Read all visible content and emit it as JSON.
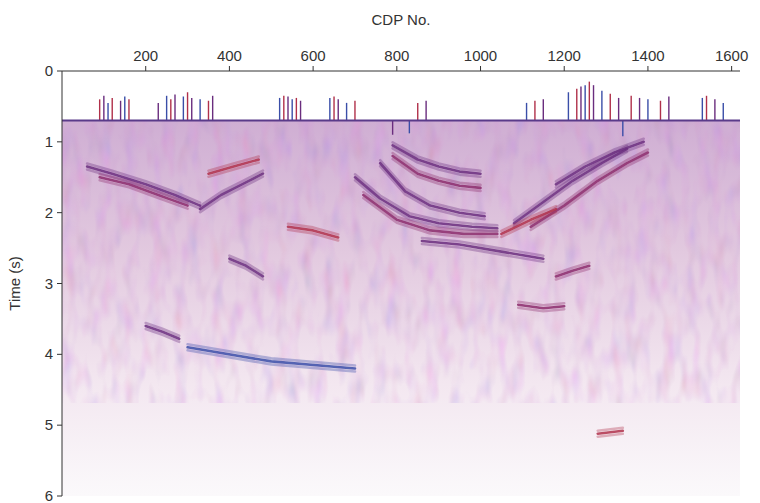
{
  "chart_data": {
    "type": "seismic_section",
    "x_label": "CDP No.",
    "y_label": "Time (s)",
    "xlim": [
      0,
      1620
    ],
    "ylim": [
      0,
      6
    ],
    "xticks": [
      200,
      400,
      600,
      800,
      1000,
      1200,
      1400,
      1600
    ],
    "yticks": [
      0,
      1,
      2,
      3,
      4,
      5,
      6
    ],
    "record_start": 0.7,
    "statics": {
      "x": [
        90,
        100,
        110,
        120,
        140,
        150,
        160,
        230,
        250,
        260,
        270,
        290,
        300,
        310,
        330,
        350,
        360,
        520,
        530,
        540,
        550,
        560,
        570,
        640,
        650,
        660,
        680,
        700,
        790,
        830,
        850,
        870,
        1110,
        1130,
        1150,
        1210,
        1230,
        1240,
        1250,
        1260,
        1270,
        1290,
        1310,
        1330,
        1340,
        1360,
        1380,
        1400,
        1430,
        1450,
        1530,
        1540,
        1560,
        1580
      ],
      "values": [
        0.4,
        0.35,
        0.45,
        0.38,
        0.42,
        0.36,
        0.4,
        0.45,
        0.35,
        0.4,
        0.33,
        0.36,
        0.3,
        0.38,
        0.4,
        0.42,
        0.35,
        0.38,
        0.35,
        0.36,
        0.4,
        0.38,
        0.42,
        0.38,
        0.36,
        0.4,
        0.45,
        0.42,
        0.9,
        0.88,
        0.45,
        0.42,
        0.45,
        0.42,
        0.4,
        0.3,
        0.25,
        0.22,
        0.2,
        0.15,
        0.2,
        0.28,
        0.32,
        0.38,
        0.92,
        0.35,
        0.38,
        0.4,
        0.42,
        0.36,
        0.38,
        0.35,
        0.4,
        0.45
      ]
    },
    "reflectors": [
      {
        "x": [
          60,
          120,
          200,
          270,
          330
        ],
        "values": [
          1.35,
          1.45,
          1.6,
          1.75,
          1.9
        ],
        "color": "#6a2d7e"
      },
      {
        "x": [
          90,
          160,
          230,
          300
        ],
        "values": [
          1.5,
          1.6,
          1.75,
          1.9
        ],
        "color": "#8b2a6b"
      },
      {
        "x": [
          330,
          380,
          430,
          480
        ],
        "values": [
          1.95,
          1.75,
          1.6,
          1.45
        ],
        "color": "#6a2d7e"
      },
      {
        "x": [
          350,
          410,
          470
        ],
        "values": [
          1.45,
          1.35,
          1.25
        ],
        "color": "#b0304a"
      },
      {
        "x": [
          790,
          850,
          900,
          950,
          1000
        ],
        "values": [
          1.05,
          1.25,
          1.35,
          1.42,
          1.45
        ],
        "color": "#6a2d7e"
      },
      {
        "x": [
          790,
          850,
          900,
          950,
          1000
        ],
        "values": [
          1.2,
          1.45,
          1.55,
          1.62,
          1.65
        ],
        "color": "#8b2a6b"
      },
      {
        "x": [
          760,
          820,
          880,
          950,
          1010
        ],
        "values": [
          1.3,
          1.7,
          1.9,
          2.0,
          2.05
        ],
        "color": "#6a2d7e"
      },
      {
        "x": [
          700,
          760,
          830,
          900,
          980,
          1040
        ],
        "values": [
          1.5,
          1.8,
          2.05,
          2.15,
          2.2,
          2.22
        ],
        "color": "#6a2d7e"
      },
      {
        "x": [
          720,
          800,
          880,
          960,
          1040
        ],
        "values": [
          1.75,
          2.1,
          2.25,
          2.3,
          2.3
        ],
        "color": "#8b2a6b"
      },
      {
        "x": [
          860,
          950,
          1050,
          1150
        ],
        "values": [
          2.4,
          2.45,
          2.55,
          2.65
        ],
        "color": "#6a2d7e"
      },
      {
        "x": [
          1080,
          1150,
          1220,
          1290,
          1350
        ],
        "values": [
          2.15,
          1.85,
          1.55,
          1.3,
          1.1
        ],
        "color": "#6a2d7e"
      },
      {
        "x": [
          1120,
          1200,
          1280,
          1350,
          1400
        ],
        "values": [
          2.2,
          1.9,
          1.55,
          1.3,
          1.15
        ],
        "color": "#8b2a6b"
      },
      {
        "x": [
          1180,
          1250,
          1320,
          1390
        ],
        "values": [
          1.6,
          1.35,
          1.15,
          1.0
        ],
        "color": "#6a2d7e"
      },
      {
        "x": [
          1050,
          1120,
          1180
        ],
        "values": [
          2.3,
          2.1,
          1.95
        ],
        "color": "#b0304a"
      },
      {
        "x": [
          400,
          440,
          480
        ],
        "values": [
          2.65,
          2.75,
          2.9
        ],
        "color": "#6a2d7e"
      },
      {
        "x": [
          200,
          240,
          280
        ],
        "values": [
          3.6,
          3.68,
          3.78
        ],
        "color": "#6a2d7e"
      },
      {
        "x": [
          1180,
          1220,
          1260
        ],
        "values": [
          2.9,
          2.82,
          2.75
        ],
        "color": "#8b2a6b"
      },
      {
        "x": [
          1280,
          1310,
          1340
        ],
        "values": [
          5.12,
          5.1,
          5.08
        ],
        "color": "#b0304a"
      },
      {
        "x": [
          1090,
          1150,
          1200
        ],
        "values": [
          3.3,
          3.35,
          3.32
        ],
        "color": "#8b2a6b"
      },
      {
        "x": [
          540,
          600,
          660
        ],
        "values": [
          2.2,
          2.25,
          2.35
        ],
        "color": "#b0304a"
      },
      {
        "x": [
          300,
          500,
          700
        ],
        "values": [
          3.9,
          4.1,
          4.2
        ],
        "color": "#3a4ea8"
      }
    ]
  }
}
